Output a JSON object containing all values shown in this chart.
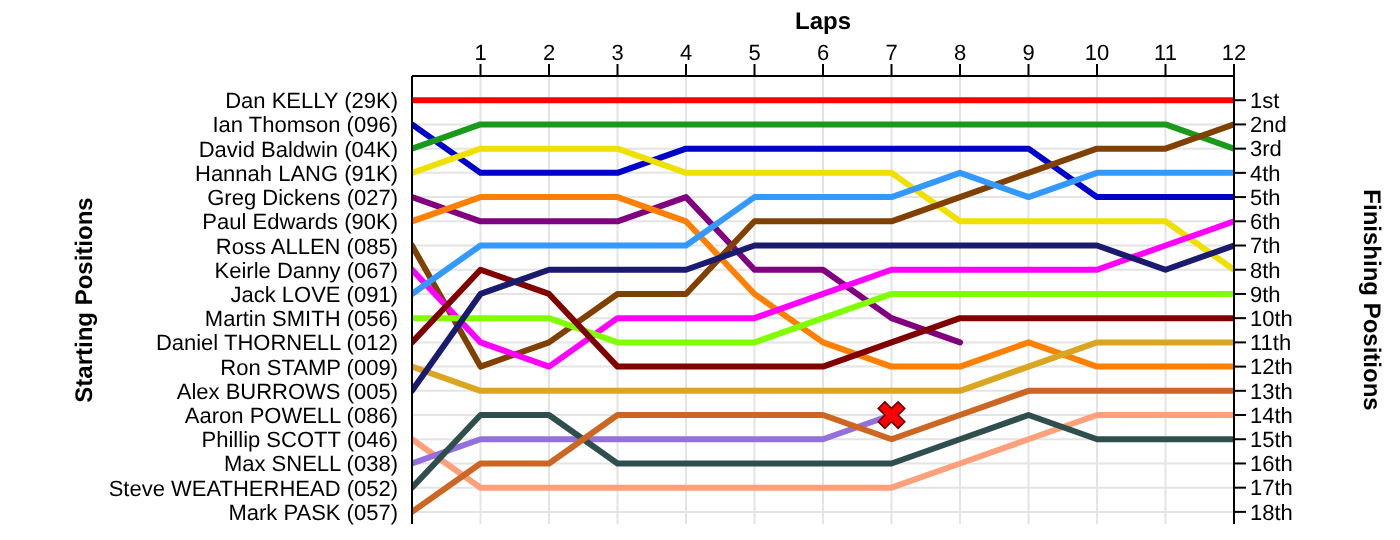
{
  "chart_data": {
    "type": "line",
    "xlabel": "Laps",
    "y2label": "Finishing Positions",
    "x": [
      0,
      1,
      2,
      3,
      4,
      5,
      6,
      7,
      8,
      9,
      10,
      11,
      12
    ],
    "xlim": [
      0,
      12
    ],
    "xticks": [
      1,
      2,
      3,
      4,
      5,
      6,
      7,
      8,
      9,
      10,
      11,
      12
    ],
    "y2lim": [
      18.5,
      0
    ],
    "y2ticks": [
      {
        "value": 1,
        "label": "1st"
      },
      {
        "value": 2,
        "label": "2nd"
      },
      {
        "value": 3,
        "label": "3rd"
      },
      {
        "value": 4,
        "label": "4th"
      },
      {
        "value": 5,
        "label": "5th"
      },
      {
        "value": 6,
        "label": "6th"
      },
      {
        "value": 7,
        "label": "7th"
      },
      {
        "value": 8,
        "label": "8th"
      },
      {
        "value": 9,
        "label": "9th"
      },
      {
        "value": 10,
        "label": "10th"
      },
      {
        "value": 11,
        "label": "11th"
      },
      {
        "value": 12,
        "label": "12th"
      },
      {
        "value": 13,
        "label": "13th"
      },
      {
        "value": 14,
        "label": "14th"
      },
      {
        "value": 15,
        "label": "15th"
      },
      {
        "value": 16,
        "label": "16th"
      },
      {
        "value": 17,
        "label": "17th"
      },
      {
        "value": 18,
        "label": "18th"
      }
    ],
    "grid": true,
    "marker": "none",
    "line_style": "solid",
    "annotations": [
      "Aaron POWELL (086)",
      "Starting Positions"
    ],
    "series": [
      {
        "name": "Dan KELLY (29K)",
        "axis": "y2",
        "color": "#ff0000",
        "values": [
          1,
          1,
          1,
          1,
          1,
          1,
          1,
          1,
          1,
          1,
          1,
          1,
          1
        ]
      },
      {
        "name": "Ian Thomson (096)",
        "axis": "y2",
        "color": "#0000cc",
        "values": [
          2,
          4,
          4,
          4,
          3,
          3,
          3,
          3,
          3,
          3,
          5,
          5,
          5
        ]
      },
      {
        "name": "David Baldwin (04K)",
        "axis": "y2",
        "color": "#1a9a1a",
        "values": [
          3,
          2,
          2,
          2,
          2,
          2,
          2,
          2,
          2,
          2,
          2,
          2,
          3
        ]
      },
      {
        "name": "Hannah LANG (91K)",
        "axis": "y2",
        "color": "#f0e000",
        "values": [
          4,
          3,
          3,
          3,
          4,
          4,
          4,
          4,
          6,
          6,
          6,
          6,
          8
        ]
      },
      {
        "name": "Greg Dickens (027)",
        "axis": "y2",
        "color": "#800080",
        "values": [
          5,
          6,
          6,
          6,
          5,
          8,
          8,
          10,
          11,
          null,
          null,
          null,
          null
        ]
      },
      {
        "name": "Paul Edwards (90K)",
        "axis": "y2",
        "color": "#ff8000",
        "values": [
          6,
          5,
          5,
          5,
          6,
          9,
          11,
          12,
          12,
          11,
          12,
          12,
          12
        ]
      },
      {
        "name": "Ross ALLEN (085)",
        "axis": "y2",
        "color": "#804000",
        "values": [
          7,
          12,
          11,
          9,
          9,
          6,
          6,
          6,
          5,
          4,
          3,
          3,
          2
        ]
      },
      {
        "name": "Keirle Danny (067)",
        "axis": "y2",
        "color": "#ff00ff",
        "values": [
          8,
          11,
          12,
          10,
          10,
          10,
          9,
          8,
          8,
          8,
          8,
          7,
          6
        ]
      },
      {
        "name": "Jack LOVE (091)",
        "axis": "y2",
        "color": "#3399ff",
        "values": [
          9,
          7,
          7,
          7,
          7,
          5,
          5,
          5,
          4,
          5,
          4,
          4,
          4
        ]
      },
      {
        "name": "Martin SMITH (056)",
        "axis": "y2",
        "color": "#80ff00",
        "values": [
          10,
          10,
          10,
          11,
          11,
          11,
          10,
          9,
          9,
          9,
          9,
          9,
          9
        ]
      },
      {
        "name": "Daniel THORNELL (012)",
        "axis": "y2",
        "color": "#800000",
        "values": [
          11,
          8,
          9,
          12,
          12,
          12,
          12,
          11,
          10,
          10,
          10,
          10,
          10
        ]
      },
      {
        "name": "Ron STAMP (009)",
        "axis": "y2",
        "color": "#daa520",
        "values": [
          12,
          13,
          13,
          13,
          13,
          13,
          13,
          13,
          13,
          12,
          11,
          11,
          11
        ]
      },
      {
        "name": "Alex BURROWS (005)",
        "axis": "y2",
        "color": "#1a1a6e",
        "values": [
          13,
          9,
          8,
          8,
          8,
          7,
          7,
          7,
          7,
          7,
          7,
          8,
          7
        ]
      },
      {
        "name": "Phillip SCOTT (046)",
        "axis": "y2",
        "color": "#ffa07a",
        "values": [
          15,
          17,
          17,
          17,
          17,
          17,
          17,
          17,
          16,
          15,
          14,
          14,
          14
        ]
      },
      {
        "name": "Max SNELL (038)",
        "axis": "y2",
        "color": "#9370db",
        "values": [
          16,
          15,
          15,
          15,
          15,
          15,
          15,
          14,
          null,
          null,
          null,
          null,
          null
        ]
      },
      {
        "name": "Steve WEATHERHEAD (052)",
        "axis": "y2",
        "color": "#2f4f4f",
        "values": [
          17,
          14,
          14,
          16,
          16,
          16,
          16,
          16,
          15,
          14,
          15,
          15,
          15
        ]
      },
      {
        "name": "Mark PASK (057)",
        "axis": "y2",
        "color": "#cc6622",
        "values": [
          18,
          16,
          16,
          14,
          14,
          14,
          14,
          15,
          14,
          13,
          13,
          13,
          13
        ]
      },
      {
        "type": "scatter",
        "axis": "y2",
        "marker": "cross",
        "color": "#ff0000",
        "x": [
          7
        ],
        "values": [
          14
        ]
      }
    ]
  }
}
